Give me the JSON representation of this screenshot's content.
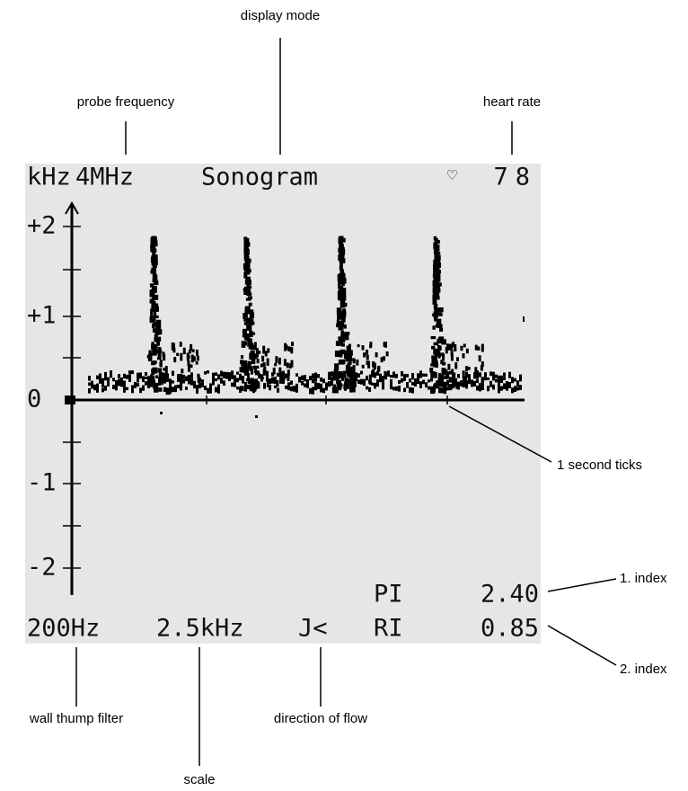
{
  "screen": {
    "header": {
      "unit": "kHz",
      "probe_frequency": "4MHz",
      "mode": "Sonogram",
      "heart_icon": "♡",
      "heart_rate": "78"
    },
    "y_labels": [
      "+2",
      "+1",
      "0",
      "-1",
      "-2"
    ],
    "indices": {
      "pi_label": "PI",
      "pi_value": "2.40",
      "ri_label": "RI",
      "ri_value": "0.85"
    },
    "footer": {
      "filter": "200Hz",
      "scale": "2.5kHz",
      "direction": "J<"
    }
  },
  "annotations": {
    "display_mode": "display mode",
    "probe_frequency": "probe frequency",
    "heart_rate": "heart rate",
    "second_ticks": "1 second ticks",
    "index_1": "1. index",
    "index_2": "2. index",
    "wall_filter": "wall thump filter",
    "direction": "direction of flow",
    "scale": "scale"
  }
}
